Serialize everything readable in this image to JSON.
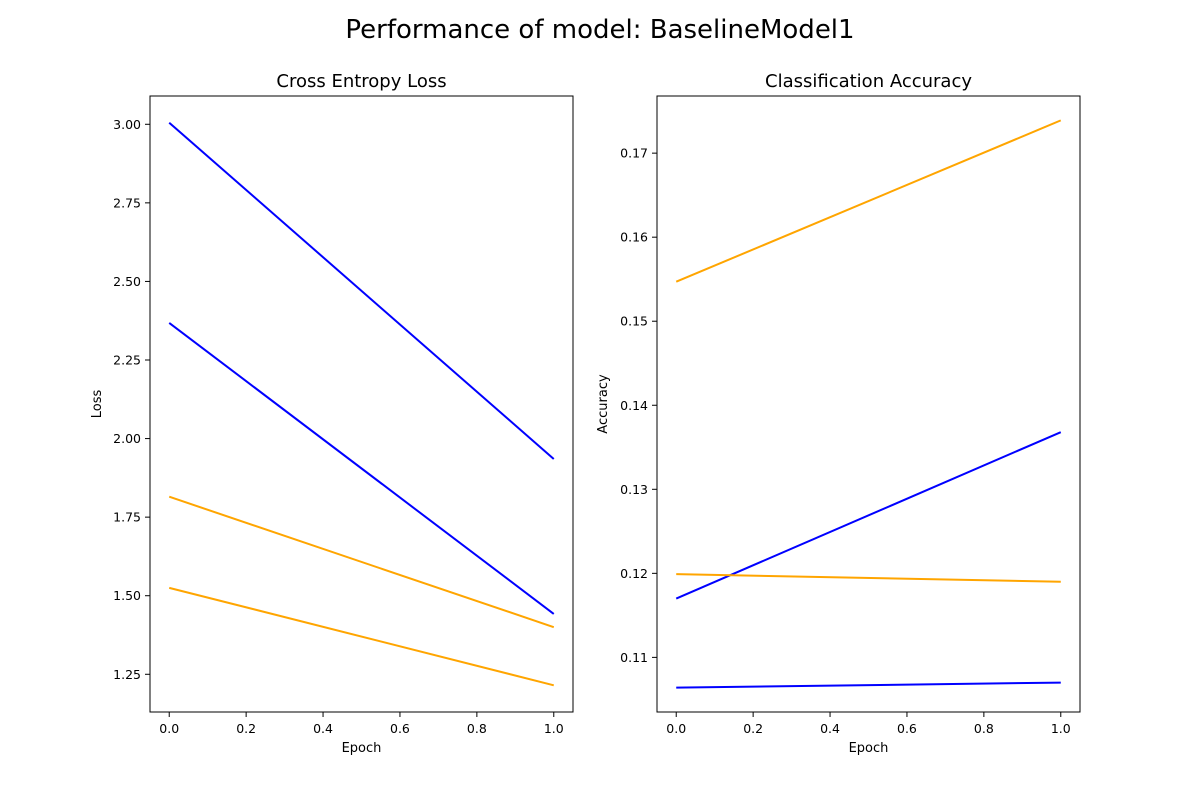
{
  "figure": {
    "suptitle": "Performance of model: BaselineModel1"
  },
  "chart_data": [
    {
      "type": "line",
      "title": "Cross Entropy Loss",
      "xlabel": "Epoch",
      "ylabel": "Loss",
      "xlim": [
        -0.05,
        1.05
      ],
      "ylim": [
        1.13,
        3.09
      ],
      "xticks": [
        0.0,
        0.2,
        0.4,
        0.6,
        0.8,
        1.0
      ],
      "xtick_labels": [
        "0.0",
        "0.2",
        "0.4",
        "0.6",
        "0.8",
        "1.0"
      ],
      "yticks": [
        1.25,
        1.5,
        1.75,
        2.0,
        2.25,
        2.5,
        2.75,
        3.0
      ],
      "ytick_labels": [
        "1.25",
        "1.50",
        "1.75",
        "2.00",
        "2.25",
        "2.50",
        "2.75",
        "3.00"
      ],
      "grid": false,
      "series": [
        {
          "color": "#0000ff",
          "x": [
            0,
            1
          ],
          "values": [
            3.005,
            1.935
          ]
        },
        {
          "color": "#0000ff",
          "x": [
            0,
            1
          ],
          "values": [
            2.368,
            1.442
          ]
        },
        {
          "color": "#ffa500",
          "x": [
            0,
            1
          ],
          "values": [
            1.815,
            1.4
          ]
        },
        {
          "color": "#ffa500",
          "x": [
            0,
            1
          ],
          "values": [
            1.525,
            1.215
          ]
        }
      ]
    },
    {
      "type": "line",
      "title": "Classification Accuracy",
      "xlabel": "Epoch",
      "ylabel": "Accuracy",
      "xlim": [
        -0.05,
        1.05
      ],
      "ylim": [
        0.1035,
        0.1768
      ],
      "xticks": [
        0.0,
        0.2,
        0.4,
        0.6,
        0.8,
        1.0
      ],
      "xtick_labels": [
        "0.0",
        "0.2",
        "0.4",
        "0.6",
        "0.8",
        "1.0"
      ],
      "yticks": [
        0.11,
        0.12,
        0.13,
        0.14,
        0.15,
        0.16,
        0.17
      ],
      "ytick_labels": [
        "0.11",
        "0.12",
        "0.13",
        "0.14",
        "0.15",
        "0.16",
        "0.17"
      ],
      "grid": false,
      "series": [
        {
          "color": "#ffa500",
          "x": [
            0,
            1
          ],
          "values": [
            0.1547,
            0.1739
          ]
        },
        {
          "color": "#0000ff",
          "x": [
            0,
            1
          ],
          "values": [
            0.117,
            0.1368
          ]
        },
        {
          "color": "#ffa500",
          "x": [
            0,
            1
          ],
          "values": [
            0.1199,
            0.119
          ]
        },
        {
          "color": "#0000ff",
          "x": [
            0,
            1
          ],
          "values": [
            0.1064,
            0.107
          ]
        }
      ]
    }
  ]
}
